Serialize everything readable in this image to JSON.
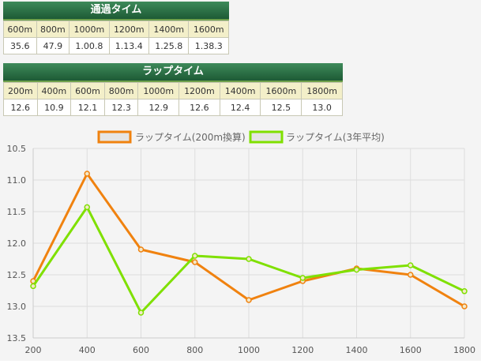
{
  "passing": {
    "title": "通過タイム",
    "headers": [
      "600m",
      "800m",
      "1000m",
      "1200m",
      "1400m",
      "1600m"
    ],
    "values": [
      "35.6",
      "47.9",
      "1.00.8",
      "1.13.4",
      "1.25.8",
      "1.38.3"
    ]
  },
  "lap": {
    "title": "ラップタイム",
    "headers": [
      "200m",
      "400m",
      "600m",
      "800m",
      "1000m",
      "1200m",
      "1400m",
      "1600m",
      "1800m"
    ],
    "values": [
      "12.6",
      "10.9",
      "12.1",
      "12.3",
      "12.9",
      "12.6",
      "12.4",
      "12.5",
      "13.0"
    ]
  },
  "chart_data": {
    "type": "line",
    "x": [
      200,
      400,
      600,
      800,
      1000,
      1200,
      1400,
      1600,
      1800
    ],
    "series": [
      {
        "name": "ラップタイム(200m換算)",
        "color": "#f0820f",
        "values": [
          12.6,
          10.9,
          12.1,
          12.3,
          12.9,
          12.6,
          12.4,
          12.5,
          13.0
        ]
      },
      {
        "name": "ラップタイム(3年平均)",
        "color": "#7fe000",
        "values": [
          12.68,
          11.43,
          13.1,
          12.2,
          12.25,
          12.55,
          12.42,
          12.35,
          12.76
        ]
      }
    ],
    "ylim": [
      10.5,
      13.5
    ],
    "yticks": [
      "10.5",
      "11.0",
      "11.5",
      "12.0",
      "12.5",
      "13.0",
      "13.5"
    ],
    "xticks": [
      "200",
      "400",
      "600",
      "800",
      "1000",
      "1200",
      "1400",
      "1600",
      "1800"
    ],
    "y_reversed": true,
    "grid": true,
    "legend_position": "top"
  }
}
